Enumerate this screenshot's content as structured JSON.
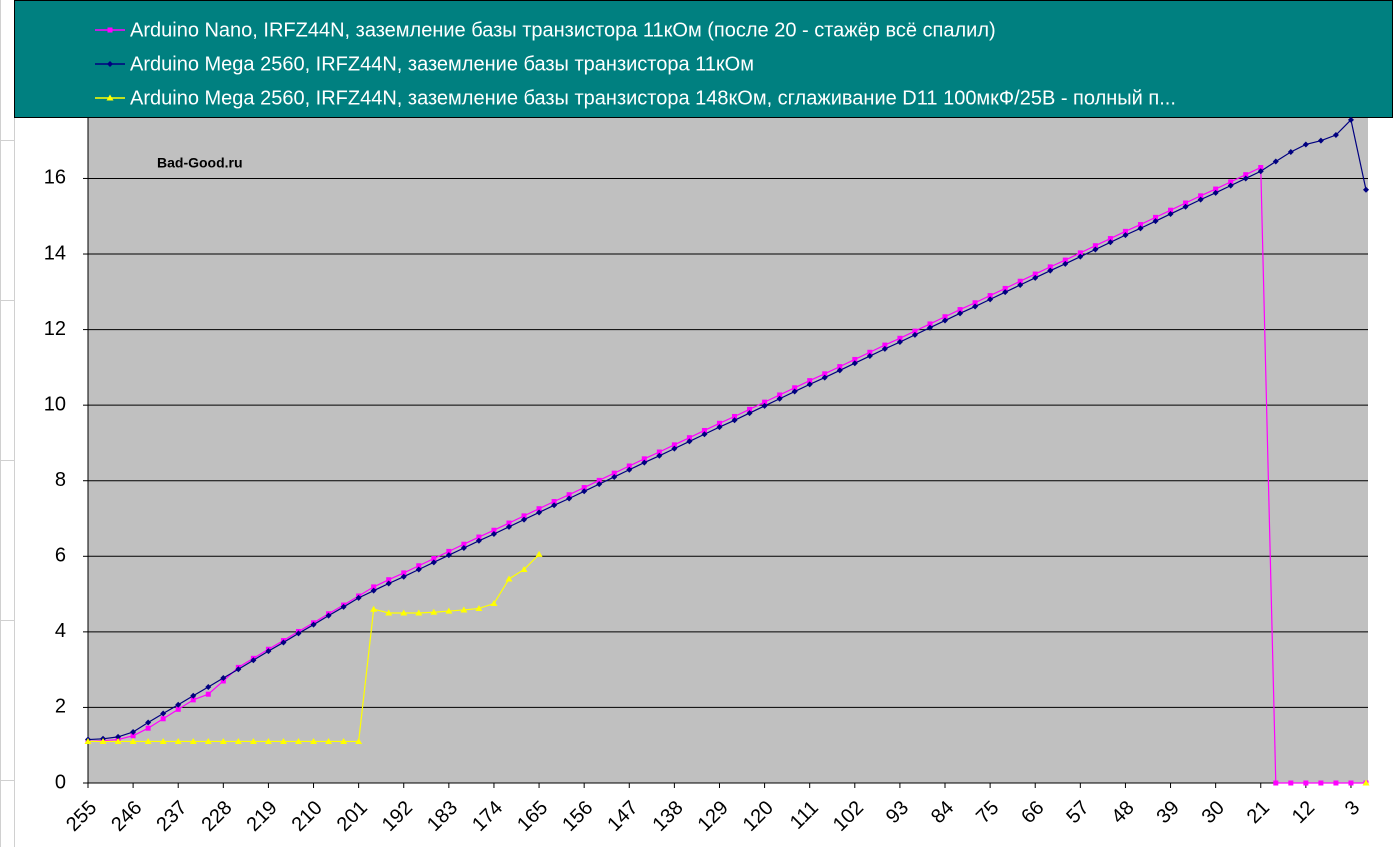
{
  "chart_data": {
    "type": "line",
    "annotation": "Bad-Good.ru",
    "legend": "top",
    "grid": true,
    "x": [
      255,
      252,
      249,
      246,
      243,
      240,
      237,
      234,
      231,
      228,
      225,
      222,
      219,
      216,
      213,
      210,
      207,
      204,
      201,
      198,
      195,
      192,
      189,
      186,
      183,
      180,
      177,
      174,
      171,
      168,
      165,
      162,
      159,
      156,
      153,
      150,
      147,
      144,
      141,
      138,
      135,
      132,
      129,
      126,
      123,
      120,
      117,
      114,
      111,
      108,
      105,
      102,
      99,
      96,
      93,
      90,
      87,
      84,
      81,
      78,
      75,
      72,
      69,
      66,
      63,
      60,
      57,
      54,
      51,
      48,
      45,
      42,
      39,
      36,
      33,
      30,
      27,
      24,
      21,
      18,
      15,
      12,
      9,
      6,
      3,
      0
    ],
    "xlim": [
      255,
      0
    ],
    "xticks": [
      255,
      246,
      237,
      228,
      219,
      210,
      201,
      192,
      183,
      174,
      165,
      156,
      147,
      138,
      129,
      120,
      111,
      102,
      93,
      84,
      75,
      66,
      57,
      48,
      39,
      30,
      21,
      12,
      3
    ],
    "ylim": [
      0,
      17.6
    ],
    "yticks": [
      0,
      2,
      4,
      6,
      8,
      10,
      12,
      14,
      16
    ],
    "series": [
      {
        "name": "Arduino Nano, IRFZ44N, заземление базы транзистора 11кОм (после 20 - стажёр всё спалил)",
        "color": "#ff00ff",
        "marker": "square",
        "values": [
          1.1,
          1.12,
          1.15,
          1.25,
          1.45,
          1.7,
          1.95,
          2.2,
          2.35,
          2.7,
          3.06,
          3.3,
          3.54,
          3.77,
          4.01,
          4.24,
          4.48,
          4.71,
          4.95,
          5.19,
          5.38,
          5.56,
          5.75,
          5.94,
          6.13,
          6.32,
          6.51,
          6.69,
          6.88,
          7.07,
          7.26,
          7.45,
          7.63,
          7.82,
          8.01,
          8.2,
          8.39,
          8.58,
          8.76,
          8.95,
          9.14,
          9.33,
          9.52,
          9.7,
          9.89,
          10.08,
          10.27,
          10.46,
          10.65,
          10.83,
          11.02,
          11.21,
          11.4,
          11.59,
          11.77,
          11.96,
          12.15,
          12.34,
          12.53,
          12.71,
          12.9,
          13.09,
          13.28,
          13.47,
          13.66,
          13.84,
          14.03,
          14.22,
          14.41,
          14.6,
          14.78,
          14.97,
          15.16,
          15.35,
          15.54,
          15.72,
          15.91,
          16.1,
          16.29,
          0,
          0,
          0,
          0,
          0,
          0,
          0
        ]
      },
      {
        "name": "Arduino Mega 2560, IRFZ44N, заземление базы транзистора 11кОм",
        "color": "#000080",
        "marker": "diamond",
        "values": [
          1.15,
          1.17,
          1.22,
          1.35,
          1.6,
          1.84,
          2.07,
          2.31,
          2.54,
          2.78,
          3.01,
          3.25,
          3.49,
          3.72,
          3.96,
          4.19,
          4.43,
          4.66,
          4.9,
          5.09,
          5.28,
          5.46,
          5.65,
          5.84,
          6.03,
          6.22,
          6.41,
          6.59,
          6.78,
          6.97,
          7.16,
          7.35,
          7.53,
          7.72,
          7.91,
          8.1,
          8.29,
          8.48,
          8.66,
          8.85,
          9.04,
          9.23,
          9.42,
          9.6,
          9.79,
          9.98,
          10.17,
          10.36,
          10.55,
          10.73,
          10.92,
          11.11,
          11.3,
          11.49,
          11.67,
          11.86,
          12.05,
          12.24,
          12.43,
          12.61,
          12.8,
          12.99,
          13.18,
          13.37,
          13.56,
          13.74,
          13.93,
          14.12,
          14.31,
          14.5,
          14.68,
          14.87,
          15.06,
          15.25,
          15.44,
          15.62,
          15.81,
          16.0,
          16.19,
          16.45,
          16.7,
          16.9,
          17.0,
          17.15,
          17.55,
          15.7
        ]
      },
      {
        "name": "Arduino Mega 2560, IRFZ44N, заземление базы транзистора 148кОм, сглаживание D11 100мкФ/25В - полный п...",
        "color": "#ffff00",
        "marker": "triangle",
        "values": [
          1.1,
          1.1,
          1.1,
          1.1,
          1.1,
          1.1,
          1.1,
          1.1,
          1.1,
          1.1,
          1.1,
          1.1,
          1.1,
          1.1,
          1.1,
          1.1,
          1.1,
          1.1,
          1.1,
          4.6,
          4.5,
          4.5,
          4.5,
          4.52,
          4.55,
          4.58,
          4.62,
          4.75,
          5.4,
          5.65,
          6.05,
          null,
          null,
          null,
          null,
          null,
          null,
          null,
          null,
          null,
          null,
          null,
          null,
          null,
          null,
          null,
          null,
          null,
          null,
          null,
          null,
          null,
          null,
          null,
          null,
          null,
          null,
          null,
          null,
          null,
          null,
          null,
          null,
          null,
          null,
          null,
          null,
          null,
          null,
          null,
          null,
          null,
          null,
          null,
          null,
          null,
          null,
          null,
          null,
          null,
          null,
          null,
          null,
          null,
          null,
          0
        ]
      }
    ]
  }
}
